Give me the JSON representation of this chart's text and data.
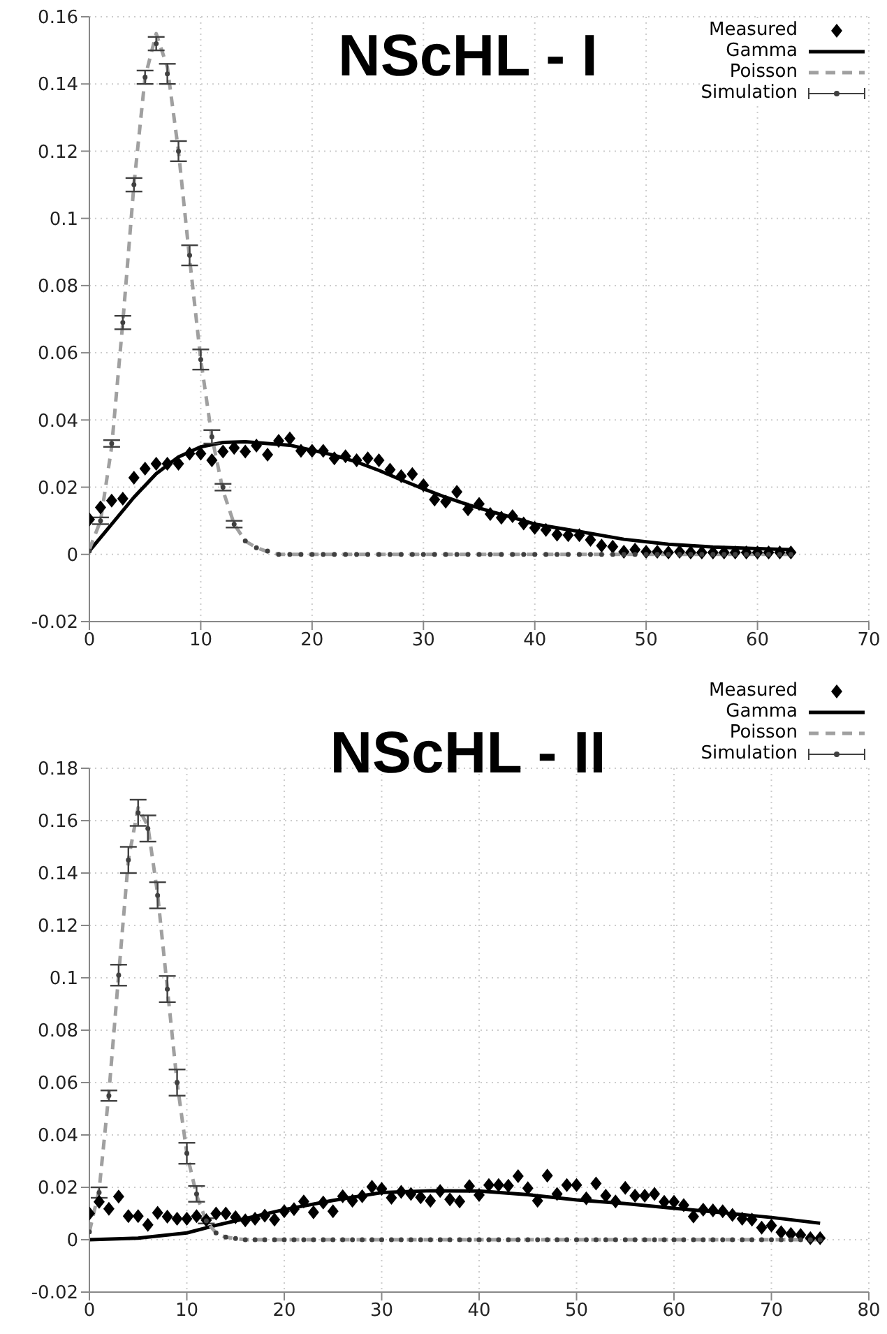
{
  "chart_data": [
    {
      "type": "line",
      "title": "NScHL - I",
      "legend": "top right",
      "grid": true,
      "xlim": [
        0,
        70
      ],
      "xticks": [
        0,
        10,
        20,
        30,
        40,
        50,
        60,
        70
      ],
      "ylim": [
        -0.02,
        0.16
      ],
      "yticks": [
        -0.02,
        0,
        0.02,
        0.04,
        0.06,
        0.08,
        0.1,
        0.12,
        0.14,
        0.16
      ],
      "x": [
        0,
        1,
        2,
        3,
        4,
        5,
        6,
        7,
        8,
        9,
        10,
        11,
        12,
        13,
        14,
        15,
        16,
        17,
        18,
        19,
        20,
        21,
        22,
        23,
        24,
        25,
        26,
        27,
        28,
        29,
        30,
        31,
        32,
        33,
        34,
        35,
        36,
        37,
        38,
        39,
        40,
        41,
        42,
        43,
        44,
        45,
        46,
        47,
        48,
        49,
        50,
        51,
        52,
        53,
        54,
        55,
        56,
        57,
        58,
        59,
        60,
        61,
        62,
        63
      ],
      "series": [
        {
          "name": "Measured",
          "type": "scatter",
          "marker": "diamond",
          "color": "#000000",
          "values": [
            0.0104,
            0.014,
            0.016,
            0.0166,
            0.0228,
            0.0255,
            0.027,
            0.027,
            0.027,
            0.03,
            0.03,
            0.028,
            0.0306,
            0.0317,
            0.0306,
            0.0324,
            0.0297,
            0.0338,
            0.0345,
            0.0308,
            0.0308,
            0.0308,
            0.0286,
            0.0292,
            0.028,
            0.0286,
            0.028,
            0.0252,
            0.0233,
            0.0239,
            0.0206,
            0.0163,
            0.0157,
            0.0186,
            0.0134,
            0.015,
            0.012,
            0.0109,
            0.0114,
            0.0092,
            0.0079,
            0.0073,
            0.0059,
            0.0057,
            0.0057,
            0.0043,
            0.0026,
            0.0023,
            0.0008,
            0.0014,
            0.0008,
            0.0008,
            0.0006,
            0.0008,
            0.0006,
            0.0006,
            0.0006,
            0.0006,
            0.0006,
            0.0006,
            0.0006,
            0.0006,
            0.0006,
            0.0006
          ]
        },
        {
          "name": "Gamma",
          "type": "line",
          "marker": "none",
          "line_style": "solid",
          "color": "#000000",
          "x": [
            0,
            2,
            4,
            6,
            8,
            10,
            12,
            14,
            16,
            18,
            20,
            22,
            24,
            26,
            28,
            30,
            32,
            34,
            36,
            38,
            40,
            44,
            48,
            52,
            56,
            60,
            63
          ],
          "values": [
            0.001,
            0.009,
            0.017,
            0.024,
            0.029,
            0.032,
            0.0333,
            0.0335,
            0.033,
            0.0325,
            0.031,
            0.0295,
            0.0275,
            0.025,
            0.0222,
            0.0195,
            0.017,
            0.0148,
            0.0128,
            0.011,
            0.009,
            0.0068,
            0.0045,
            0.003,
            0.0022,
            0.0017,
            0.0014
          ]
        },
        {
          "name": "Poisson",
          "type": "line",
          "marker": "none",
          "line_style": "dashed",
          "color": "#a0a0a0",
          "x": [
            0,
            1,
            2,
            3,
            4,
            5,
            6,
            7,
            8,
            9,
            10,
            11,
            12,
            13,
            14,
            15,
            16,
            17,
            63
          ],
          "values": [
            0.0015,
            0.01,
            0.032,
            0.069,
            0.11,
            0.142,
            0.155,
            0.145,
            0.12,
            0.088,
            0.058,
            0.035,
            0.019,
            0.009,
            0.004,
            0.002,
            0.0008,
            0,
            0
          ]
        },
        {
          "name": "Simulation",
          "type": "scatter",
          "marker": "circle",
          "color": "#404040",
          "values": [
            0.001,
            0.01,
            0.033,
            0.069,
            0.11,
            0.142,
            0.152,
            0.143,
            0.12,
            0.089,
            0.058,
            0.035,
            0.02,
            0.009,
            0.004,
            0.002,
            0.001,
            0,
            0,
            0,
            0,
            0,
            0,
            0,
            0,
            0,
            0,
            0,
            0,
            0,
            0,
            0,
            0,
            0,
            0,
            0,
            0,
            0,
            0,
            0,
            0,
            0,
            0,
            0,
            0,
            0,
            0,
            0,
            0,
            0,
            0,
            0,
            0,
            0,
            0,
            0,
            0,
            0,
            0,
            0,
            0,
            0,
            0,
            0
          ],
          "errors": [
            null,
            0.001,
            0.001,
            0.002,
            0.002,
            0.002,
            0.002,
            0.003,
            0.003,
            0.003,
            0.003,
            0.002,
            0.001,
            0.001,
            null,
            null,
            null,
            null,
            null,
            null,
            null,
            null,
            null,
            null,
            null,
            null,
            null,
            null,
            null,
            null,
            null,
            null,
            null,
            null,
            null,
            null,
            null,
            null,
            null,
            null,
            null,
            null,
            null,
            null,
            null,
            null,
            null,
            null,
            null,
            null,
            null,
            null,
            null,
            null,
            null,
            null,
            null,
            null,
            null,
            null,
            null,
            null,
            null,
            null
          ]
        }
      ]
    },
    {
      "type": "line",
      "title": "NScHL - II",
      "legend": "top right",
      "grid": true,
      "xlim": [
        0,
        80
      ],
      "xticks": [
        0,
        10,
        20,
        30,
        40,
        50,
        60,
        70,
        80
      ],
      "ylim": [
        -0.02,
        0.18
      ],
      "yticks": [
        -0.02,
        0,
        0.02,
        0.04,
        0.06,
        0.08,
        0.1,
        0.12,
        0.14,
        0.16,
        0.18
      ],
      "x": [
        0,
        1,
        2,
        3,
        4,
        5,
        6,
        7,
        8,
        9,
        10,
        11,
        12,
        13,
        14,
        15,
        16,
        17,
        18,
        19,
        20,
        21,
        22,
        23,
        24,
        25,
        26,
        27,
        28,
        29,
        30,
        31,
        32,
        33,
        34,
        35,
        36,
        37,
        38,
        39,
        40,
        41,
        42,
        43,
        44,
        45,
        46,
        47,
        48,
        49,
        50,
        51,
        52,
        53,
        54,
        55,
        56,
        57,
        58,
        59,
        60,
        61,
        62,
        63,
        64,
        65,
        66,
        67,
        68,
        69,
        70,
        71,
        72,
        73,
        74,
        75
      ],
      "series": [
        {
          "name": "Measured",
          "type": "scatter",
          "marker": "diamond",
          "color": "#000000",
          "values": [
            0.01,
            0.0145,
            0.0118,
            0.0165,
            0.009,
            0.009,
            0.0057,
            0.0103,
            0.0088,
            0.008,
            0.008,
            0.009,
            0.0075,
            0.01,
            0.01,
            0.0086,
            0.0074,
            0.008,
            0.0092,
            0.0077,
            0.0109,
            0.0117,
            0.0146,
            0.0105,
            0.0142,
            0.0109,
            0.0166,
            0.0149,
            0.0166,
            0.0202,
            0.0194,
            0.016,
            0.0183,
            0.0175,
            0.0162,
            0.0149,
            0.0186,
            0.0154,
            0.0146,
            0.0205,
            0.0171,
            0.0209,
            0.0209,
            0.0206,
            0.0243,
            0.0197,
            0.0149,
            0.0245,
            0.0175,
            0.0209,
            0.0209,
            0.0158,
            0.0215,
            0.0168,
            0.0146,
            0.0198,
            0.0168,
            0.0168,
            0.0175,
            0.0145,
            0.0145,
            0.0132,
            0.0089,
            0.0115,
            0.0112,
            0.0109,
            0.0095,
            0.008,
            0.0077,
            0.0046,
            0.0054,
            0.0029,
            0.0022,
            0.0018,
            0.0006,
            0.0006
          ]
        },
        {
          "name": "Gamma",
          "type": "line",
          "marker": "none",
          "line_style": "solid",
          "color": "#000000",
          "x": [
            0,
            5,
            10,
            13,
            15,
            20,
            25,
            30,
            35,
            40,
            45,
            50,
            55,
            60,
            65,
            70,
            75
          ],
          "values": [
            0,
            0.0006,
            0.0026,
            0.0055,
            0.0072,
            0.0115,
            0.015,
            0.018,
            0.0187,
            0.0186,
            0.0172,
            0.0152,
            0.0138,
            0.012,
            0.0103,
            0.0085,
            0.0063
          ]
        },
        {
          "name": "Poisson",
          "type": "line",
          "marker": "none",
          "line_style": "dashed",
          "color": "#a0a0a0",
          "x": [
            0,
            1,
            2,
            3,
            4,
            5,
            6,
            7,
            8,
            9,
            10,
            11,
            12,
            13,
            14,
            15,
            16,
            75
          ],
          "values": [
            0.003,
            0.019,
            0.056,
            0.101,
            0.145,
            0.165,
            0.158,
            0.132,
            0.096,
            0.06,
            0.033,
            0.017,
            0.007,
            0.0026,
            0.001,
            0.0004,
            0,
            0
          ]
        },
        {
          "name": "Simulation",
          "type": "scatter",
          "marker": "circle",
          "color": "#404040",
          "values": [
            0.003,
            0.018,
            0.055,
            0.101,
            0.145,
            0.163,
            0.157,
            0.1315,
            0.0957,
            0.06,
            0.033,
            0.0175,
            0.0072,
            0.0026,
            0.001,
            0.0005,
            0,
            0,
            0,
            0,
            0,
            0,
            0,
            0,
            0,
            0,
            0,
            0,
            0,
            0,
            0,
            0,
            0,
            0,
            0,
            0,
            0,
            0,
            0,
            0,
            0,
            0,
            0,
            0,
            0,
            0,
            0,
            0,
            0,
            0,
            0,
            0,
            0,
            0,
            0,
            0,
            0,
            0,
            0,
            0,
            0,
            0,
            0,
            0,
            0,
            0,
            0,
            0,
            0,
            0,
            0,
            0,
            0,
            0,
            0,
            0
          ],
          "errors": [
            null,
            0.002,
            0.002,
            0.004,
            0.005,
            0.005,
            0.005,
            0.005,
            0.005,
            0.005,
            0.004,
            0.003,
            0.001,
            null,
            null,
            null,
            null,
            null,
            null,
            null,
            null,
            null,
            null,
            null,
            null,
            null,
            null,
            null,
            null,
            null,
            null,
            null,
            null,
            null,
            null,
            null,
            null,
            null,
            null,
            null,
            null,
            null,
            null,
            null,
            null,
            null,
            null,
            null,
            null,
            null,
            null,
            null,
            null,
            null,
            null,
            null,
            null,
            null,
            null,
            null,
            null,
            null,
            null,
            null,
            null,
            null,
            null,
            null,
            null,
            null,
            null,
            null,
            null,
            null,
            null,
            null
          ]
        }
      ]
    }
  ]
}
